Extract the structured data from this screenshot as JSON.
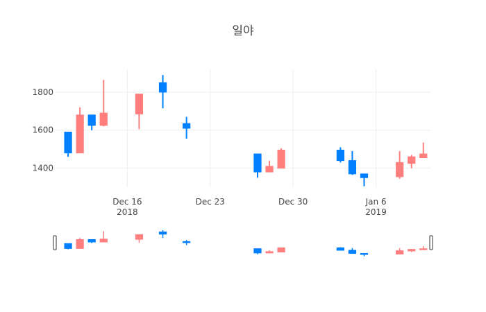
{
  "chart_data": {
    "type": "candlestick",
    "title": "일야",
    "xlabel": "",
    "ylabel": "",
    "x_ticks": [
      {
        "date": "2018-12-16",
        "label": "Dec 16",
        "sublabel": "2018"
      },
      {
        "date": "2018-12-23",
        "label": "Dec 23",
        "sublabel": ""
      },
      {
        "date": "2018-12-30",
        "label": "Dec 30",
        "sublabel": ""
      },
      {
        "date": "2019-01-06",
        "label": "Jan 6",
        "sublabel": "2019"
      }
    ],
    "y_ticks": [
      1400,
      1600,
      1800
    ],
    "xlim": [
      "2018-12-10",
      "2019-01-10"
    ],
    "ylim": [
      1300,
      1920
    ],
    "grid": true,
    "rangeslider": true,
    "increasing_color": "#FF7F7F",
    "decreasing_color": "#007FFF",
    "candles": [
      {
        "date": "2018-12-11",
        "open": 1590,
        "high": 1590,
        "low": 1460,
        "close": 1480
      },
      {
        "date": "2018-12-12",
        "open": 1480,
        "high": 1720,
        "low": 1480,
        "close": 1680
      },
      {
        "date": "2018-12-13",
        "open": 1680,
        "high": 1680,
        "low": 1600,
        "close": 1625
      },
      {
        "date": "2018-12-14",
        "open": 1625,
        "high": 1865,
        "low": 1620,
        "close": 1690
      },
      {
        "date": "2018-12-17",
        "open": 1685,
        "high": 1790,
        "low": 1605,
        "close": 1790
      },
      {
        "date": "2018-12-19",
        "open": 1850,
        "high": 1890,
        "low": 1715,
        "close": 1800
      },
      {
        "date": "2018-12-21",
        "open": 1635,
        "high": 1670,
        "low": 1555,
        "close": 1610
      },
      {
        "date": "2018-12-27",
        "open": 1475,
        "high": 1475,
        "low": 1350,
        "close": 1380
      },
      {
        "date": "2018-12-28",
        "open": 1380,
        "high": 1440,
        "low": 1380,
        "close": 1410
      },
      {
        "date": "2018-12-29",
        "open": 1400,
        "high": 1505,
        "low": 1400,
        "close": 1495
      },
      {
        "date": "2019-01-03",
        "open": 1495,
        "high": 1510,
        "low": 1430,
        "close": 1440
      },
      {
        "date": "2019-01-04",
        "open": 1440,
        "high": 1490,
        "low": 1365,
        "close": 1370
      },
      {
        "date": "2019-01-05",
        "open": 1370,
        "high": 1370,
        "low": 1305,
        "close": 1350
      },
      {
        "date": "2019-01-08",
        "open": 1355,
        "high": 1490,
        "low": 1345,
        "close": 1430
      },
      {
        "date": "2019-01-09",
        "open": 1425,
        "high": 1470,
        "low": 1400,
        "close": 1460
      },
      {
        "date": "2019-01-10",
        "open": 1455,
        "high": 1535,
        "low": 1455,
        "close": 1475
      }
    ]
  }
}
